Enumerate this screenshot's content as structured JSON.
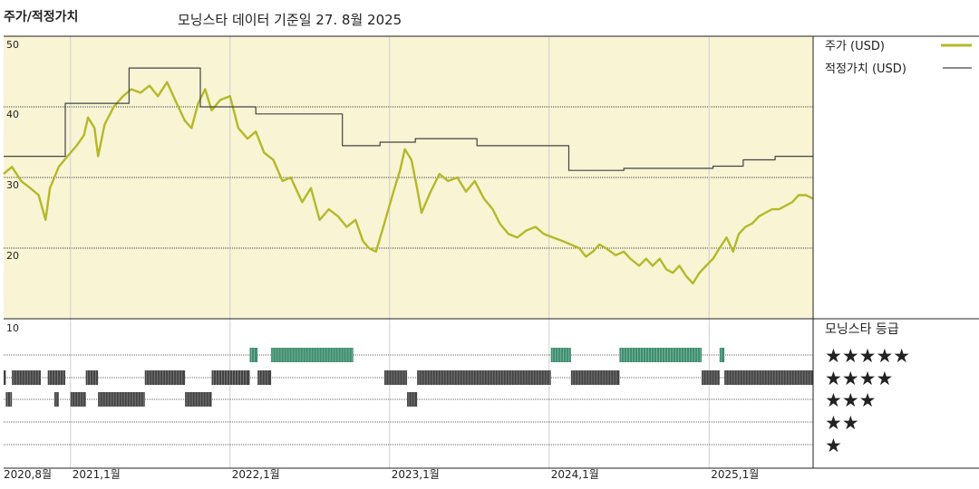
{
  "header": {
    "title": "주가/적정가치",
    "subtitle": "모닝스타 데이터 기준일 27. 8월 2025"
  },
  "colors": {
    "price_line": "#b5b82a",
    "fair_value_line": "#444444",
    "upper_panel_bg": "#f8f4d4",
    "rating_bar_green": "#3f8f6f",
    "rating_bar_dark": "#444444"
  },
  "chart_data": [
    {
      "type": "line",
      "title": "주가/적정가치",
      "ylim": [
        10,
        50
      ],
      "y_ticks": [
        "50",
        "40",
        "30",
        "20"
      ],
      "x_date_range": [
        "2020-08-01",
        "2025-08-27"
      ],
      "x_ticks": [
        {
          "date": "2020-08-01",
          "label": "2020,8월"
        },
        {
          "date": "2021-01-01",
          "label": "2021,1월"
        },
        {
          "date": "2022-01-01",
          "label": "2022,1월"
        },
        {
          "date": "2023-01-01",
          "label": "2023,1월"
        },
        {
          "date": "2024-01-01",
          "label": "2024,1월"
        },
        {
          "date": "2025-01-01",
          "label": "2025,1월"
        }
      ],
      "legend_position": "right",
      "series": [
        {
          "name": "주가 (USD)",
          "style": "thick-olive",
          "points": [
            [
              "2020-08-01",
              30.5
            ],
            [
              "2020-08-20",
              31.5
            ],
            [
              "2020-09-10",
              29.5
            ],
            [
              "2020-10-01",
              28.5
            ],
            [
              "2020-10-20",
              27.5
            ],
            [
              "2020-11-05",
              24.0
            ],
            [
              "2020-11-15",
              28.5
            ],
            [
              "2020-12-05",
              31.5
            ],
            [
              "2020-12-25",
              33.0
            ],
            [
              "2021-01-15",
              34.5
            ],
            [
              "2021-02-01",
              36.0
            ],
            [
              "2021-02-10",
              38.5
            ],
            [
              "2021-02-25",
              37.0
            ],
            [
              "2021-03-05",
              33.0
            ],
            [
              "2021-03-20",
              37.5
            ],
            [
              "2021-04-10",
              40.0
            ],
            [
              "2021-05-01",
              41.5
            ],
            [
              "2021-05-20",
              42.5
            ],
            [
              "2021-06-10",
              42.0
            ],
            [
              "2021-07-01",
              43.0
            ],
            [
              "2021-07-20",
              41.5
            ],
            [
              "2021-08-10",
              43.5
            ],
            [
              "2021-09-01",
              40.5
            ],
            [
              "2021-09-20",
              38.0
            ],
            [
              "2021-10-05",
              37.0
            ],
            [
              "2021-10-20",
              40.5
            ],
            [
              "2021-11-05",
              42.5
            ],
            [
              "2021-11-20",
              39.5
            ],
            [
              "2021-12-10",
              41.0
            ],
            [
              "2022-01-01",
              41.5
            ],
            [
              "2022-01-20",
              37.0
            ],
            [
              "2022-02-10",
              35.5
            ],
            [
              "2022-03-01",
              36.5
            ],
            [
              "2022-03-20",
              33.5
            ],
            [
              "2022-04-10",
              32.5
            ],
            [
              "2022-05-01",
              29.5
            ],
            [
              "2022-05-20",
              30.0
            ],
            [
              "2022-06-15",
              26.5
            ],
            [
              "2022-07-05",
              28.5
            ],
            [
              "2022-07-25",
              24.0
            ],
            [
              "2022-08-15",
              25.5
            ],
            [
              "2022-09-05",
              24.5
            ],
            [
              "2022-09-25",
              23.0
            ],
            [
              "2022-10-15",
              24.0
            ],
            [
              "2022-11-01",
              21.0
            ],
            [
              "2022-11-15",
              20.0
            ],
            [
              "2022-12-01",
              19.5
            ],
            [
              "2022-12-20",
              23.5
            ],
            [
              "2023-01-10",
              28.0
            ],
            [
              "2023-01-25",
              31.0
            ],
            [
              "2023-02-05",
              34.0
            ],
            [
              "2023-02-20",
              32.5
            ],
            [
              "2023-03-05",
              28.5
            ],
            [
              "2023-03-15",
              25.0
            ],
            [
              "2023-04-05",
              28.0
            ],
            [
              "2023-04-25",
              30.5
            ],
            [
              "2023-05-15",
              29.5
            ],
            [
              "2023-06-05",
              30.0
            ],
            [
              "2023-06-25",
              28.0
            ],
            [
              "2023-07-15",
              29.5
            ],
            [
              "2023-08-05",
              27.0
            ],
            [
              "2023-08-25",
              25.5
            ],
            [
              "2023-09-10",
              23.5
            ],
            [
              "2023-09-30",
              22.0
            ],
            [
              "2023-10-20",
              21.5
            ],
            [
              "2023-11-10",
              22.5
            ],
            [
              "2023-12-01",
              23.0
            ],
            [
              "2023-12-20",
              22.0
            ],
            [
              "2024-01-10",
              21.5
            ],
            [
              "2024-02-01",
              21.0
            ],
            [
              "2024-02-20",
              20.5
            ],
            [
              "2024-03-10",
              20.0
            ],
            [
              "2024-03-25",
              18.8
            ],
            [
              "2024-04-10",
              19.5
            ],
            [
              "2024-04-25",
              20.5
            ],
            [
              "2024-05-10",
              20.0
            ],
            [
              "2024-06-01",
              19.0
            ],
            [
              "2024-06-20",
              19.5
            ],
            [
              "2024-07-05",
              18.5
            ],
            [
              "2024-07-25",
              17.5
            ],
            [
              "2024-08-10",
              18.5
            ],
            [
              "2024-08-25",
              17.5
            ],
            [
              "2024-09-10",
              18.5
            ],
            [
              "2024-09-25",
              17.0
            ],
            [
              "2024-10-10",
              16.5
            ],
            [
              "2024-10-25",
              17.5
            ],
            [
              "2024-11-10",
              16.0
            ],
            [
              "2024-11-25",
              15.0
            ],
            [
              "2024-12-10",
              16.5
            ],
            [
              "2024-12-25",
              17.5
            ],
            [
              "2025-01-10",
              18.5
            ],
            [
              "2025-01-25",
              20.0
            ],
            [
              "2025-02-10",
              21.5
            ],
            [
              "2025-02-25",
              19.5
            ],
            [
              "2025-03-10",
              22.0
            ],
            [
              "2025-03-25",
              23.0
            ],
            [
              "2025-04-10",
              23.5
            ],
            [
              "2025-04-25",
              24.5
            ],
            [
              "2025-05-10",
              25.0
            ],
            [
              "2025-05-25",
              25.5
            ],
            [
              "2025-06-10",
              25.5
            ],
            [
              "2025-06-25",
              26.0
            ],
            [
              "2025-07-10",
              26.5
            ],
            [
              "2025-07-25",
              27.5
            ],
            [
              "2025-08-10",
              27.5
            ],
            [
              "2025-08-27",
              27.0
            ]
          ]
        },
        {
          "name": "적정가치 (USD)",
          "style": "thin-dark-step",
          "points": [
            [
              "2020-08-01",
              33.0
            ],
            [
              "2020-12-20",
              33.0
            ],
            [
              "2020-12-20",
              40.5
            ],
            [
              "2021-05-15",
              40.5
            ],
            [
              "2021-05-15",
              45.5
            ],
            [
              "2021-10-25",
              45.5
            ],
            [
              "2021-10-25",
              40.0
            ],
            [
              "2022-03-01",
              40.0
            ],
            [
              "2022-03-01",
              39.0
            ],
            [
              "2022-09-15",
              39.0
            ],
            [
              "2022-09-15",
              34.5
            ],
            [
              "2022-12-10",
              34.5
            ],
            [
              "2022-12-10",
              35.0
            ],
            [
              "2023-03-01",
              35.0
            ],
            [
              "2023-03-01",
              35.5
            ],
            [
              "2023-07-20",
              35.5
            ],
            [
              "2023-07-20",
              34.5
            ],
            [
              "2024-02-15",
              34.5
            ],
            [
              "2024-02-15",
              31.0
            ],
            [
              "2024-06-20",
              31.0
            ],
            [
              "2024-06-20",
              31.3
            ],
            [
              "2025-01-10",
              31.3
            ],
            [
              "2025-01-10",
              31.6
            ],
            [
              "2025-03-20",
              31.6
            ],
            [
              "2025-03-20",
              32.5
            ],
            [
              "2025-06-01",
              32.5
            ],
            [
              "2025-06-01",
              33.0
            ],
            [
              "2025-08-27",
              33.0
            ]
          ]
        }
      ]
    },
    {
      "type": "heatmap",
      "title": "모닝스타 등급",
      "y_tick": "10",
      "rows": [
        {
          "stars": 5,
          "label": "★★★★★",
          "periods": [
            [
              "2022-02-15",
              "2022-03-05"
            ],
            [
              "2022-04-05",
              "2022-10-10"
            ],
            [
              "2024-01-05",
              "2024-02-20"
            ],
            [
              "2024-06-10",
              "2024-12-15"
            ],
            [
              "2025-01-25",
              "2025-02-05"
            ]
          ]
        },
        {
          "stars": 4,
          "label": "★★★★",
          "periods": [
            [
              "2020-08-01",
              "2020-08-06"
            ],
            [
              "2020-08-20",
              "2020-10-25"
            ],
            [
              "2020-11-10",
              "2020-12-20"
            ],
            [
              "2021-02-05",
              "2021-03-05"
            ],
            [
              "2021-06-20",
              "2021-09-20"
            ],
            [
              "2021-11-20",
              "2022-02-15"
            ],
            [
              "2022-03-05",
              "2022-04-05"
            ],
            [
              "2022-12-20",
              "2023-02-10"
            ],
            [
              "2023-03-05",
              "2024-01-05"
            ],
            [
              "2024-02-20",
              "2024-06-10"
            ],
            [
              "2024-12-15",
              "2025-01-25"
            ],
            [
              "2025-02-05",
              "2025-08-27"
            ]
          ]
        },
        {
          "stars": 3,
          "label": "★★★",
          "periods": [
            [
              "2020-08-06",
              "2020-08-20"
            ],
            [
              "2020-11-25",
              "2020-12-05"
            ],
            [
              "2021-01-01",
              "2021-02-05"
            ],
            [
              "2021-03-05",
              "2021-06-20"
            ],
            [
              "2021-09-20",
              "2021-11-20"
            ],
            [
              "2023-02-10",
              "2023-03-05"
            ]
          ]
        },
        {
          "stars": 2,
          "label": "★★",
          "periods": []
        },
        {
          "stars": 1,
          "label": "★",
          "periods": []
        }
      ]
    }
  ]
}
